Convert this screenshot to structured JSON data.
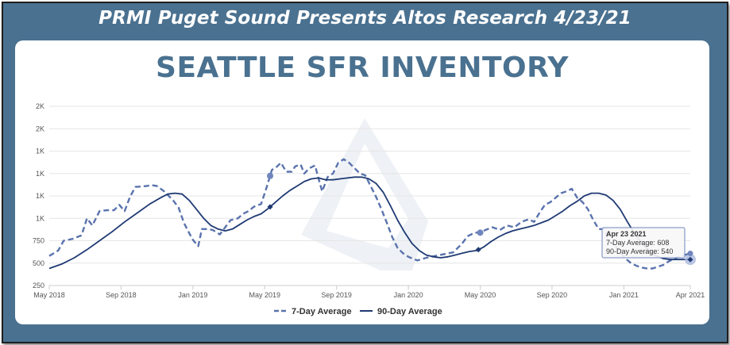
{
  "header": {
    "banner": "PRMI Puget Sound Presents Altos Research 4/23/21",
    "title": "SEATTLE SFR INVENTORY"
  },
  "colors": {
    "frame": "#4a7190",
    "series_7day": "#5a73ad",
    "series_90day": "#1f3a73",
    "grid": "#e6e6e6"
  },
  "chart_data": {
    "type": "line",
    "title": "SEATTLE SFR INVENTORY",
    "xlabel": "",
    "ylabel": "",
    "ylim": [
      250,
      2250
    ],
    "y_ticks": [
      {
        "value": 2250,
        "label": "2K"
      },
      {
        "value": 2000,
        "label": "2K"
      },
      {
        "value": 1750,
        "label": "1K"
      },
      {
        "value": 1500,
        "label": "1K"
      },
      {
        "value": 1250,
        "label": "1K"
      },
      {
        "value": 1000,
        "label": "1K"
      },
      {
        "value": 750,
        "label": "750"
      },
      {
        "value": 500,
        "label": "500"
      },
      {
        "value": 250,
        "label": "250"
      }
    ],
    "x_ticks": [
      {
        "value": 0,
        "label": "May 2018"
      },
      {
        "value": 4,
        "label": "Sep 2018"
      },
      {
        "value": 8,
        "label": "Jan 2019"
      },
      {
        "value": 12,
        "label": "May 2019"
      },
      {
        "value": 16,
        "label": "Sep 2019"
      },
      {
        "value": 20,
        "label": "Jan 2020"
      },
      {
        "value": 24,
        "label": "May 2020"
      },
      {
        "value": 28,
        "label": "Sep 2020"
      },
      {
        "value": 32,
        "label": "Jan 2021"
      },
      {
        "value": 35.7,
        "label": "Apr 2021"
      }
    ],
    "x_unit": "months since May 2018",
    "legend_position": "bottom",
    "series": [
      {
        "name": "7-Day Average",
        "style": "dashed",
        "points": [
          [
            0,
            580
          ],
          [
            0.5,
            640
          ],
          [
            0.8,
            750
          ],
          [
            1.3,
            770
          ],
          [
            1.8,
            810
          ],
          [
            2.1,
            1000
          ],
          [
            2.4,
            920
          ],
          [
            2.8,
            1080
          ],
          [
            3.2,
            1090
          ],
          [
            3.6,
            1090
          ],
          [
            3.9,
            1150
          ],
          [
            4.2,
            1080
          ],
          [
            4.5,
            1240
          ],
          [
            4.8,
            1350
          ],
          [
            5.4,
            1360
          ],
          [
            5.7,
            1370
          ],
          [
            6.0,
            1360
          ],
          [
            6.4,
            1300
          ],
          [
            6.9,
            1200
          ],
          [
            7.2,
            1120
          ],
          [
            7.5,
            950
          ],
          [
            7.7,
            870
          ],
          [
            8.0,
            760
          ],
          [
            8.3,
            690
          ],
          [
            8.5,
            880
          ],
          [
            8.8,
            880
          ],
          [
            9.1,
            870
          ],
          [
            9.5,
            820
          ],
          [
            9.8,
            900
          ],
          [
            10.1,
            980
          ],
          [
            10.5,
            1000
          ],
          [
            10.8,
            1050
          ],
          [
            11.1,
            1080
          ],
          [
            11.4,
            1130
          ],
          [
            11.8,
            1160
          ],
          [
            12.1,
            1340
          ],
          [
            12.4,
            1540
          ],
          [
            12.7,
            1580
          ],
          [
            12.9,
            1620
          ],
          [
            13.2,
            1520
          ],
          [
            13.5,
            1520
          ],
          [
            13.7,
            1580
          ],
          [
            14.0,
            1600
          ],
          [
            14.2,
            1500
          ],
          [
            14.5,
            1560
          ],
          [
            14.8,
            1590
          ],
          [
            15.0,
            1440
          ],
          [
            15.2,
            1300
          ],
          [
            15.5,
            1460
          ],
          [
            15.8,
            1500
          ],
          [
            16.1,
            1620
          ],
          [
            16.4,
            1660
          ],
          [
            16.7,
            1620
          ],
          [
            17.0,
            1560
          ],
          [
            17.3,
            1500
          ],
          [
            17.6,
            1480
          ],
          [
            17.9,
            1360
          ],
          [
            18.2,
            1240
          ],
          [
            18.5,
            1100
          ],
          [
            18.8,
            950
          ],
          [
            19.1,
            790
          ],
          [
            19.4,
            670
          ],
          [
            19.7,
            610
          ],
          [
            20.0,
            570
          ],
          [
            20.5,
            530
          ],
          [
            21.0,
            560
          ],
          [
            21.5,
            580
          ],
          [
            22.0,
            600
          ],
          [
            22.5,
            620
          ],
          [
            23.0,
            720
          ],
          [
            23.3,
            800
          ],
          [
            23.7,
            840
          ],
          [
            24.0,
            840
          ],
          [
            24.3,
            870
          ],
          [
            24.7,
            900
          ],
          [
            25.1,
            870
          ],
          [
            25.5,
            920
          ],
          [
            25.9,
            900
          ],
          [
            26.3,
            960
          ],
          [
            26.7,
            990
          ],
          [
            27.0,
            960
          ],
          [
            27.3,
            1060
          ],
          [
            27.6,
            1150
          ],
          [
            27.9,
            1180
          ],
          [
            28.2,
            1230
          ],
          [
            28.5,
            1280
          ],
          [
            28.8,
            1300
          ],
          [
            29.1,
            1330
          ],
          [
            29.4,
            1230
          ],
          [
            29.7,
            1180
          ],
          [
            30.0,
            1100
          ],
          [
            30.3,
            980
          ],
          [
            30.6,
            880
          ],
          [
            30.9,
            880
          ],
          [
            31.2,
            740
          ],
          [
            31.5,
            700
          ],
          [
            31.8,
            620
          ],
          [
            32.1,
            550
          ],
          [
            32.4,
            500
          ],
          [
            32.7,
            470
          ],
          [
            33.0,
            450
          ],
          [
            33.3,
            440
          ],
          [
            33.6,
            440
          ],
          [
            33.9,
            460
          ],
          [
            34.2,
            480
          ],
          [
            34.5,
            520
          ],
          [
            34.8,
            550
          ],
          [
            35.2,
            580
          ],
          [
            35.7,
            608
          ]
        ]
      },
      {
        "name": "90-Day Average",
        "style": "solid",
        "points": [
          [
            0,
            440
          ],
          [
            0.7,
            490
          ],
          [
            1.4,
            560
          ],
          [
            2.1,
            650
          ],
          [
            2.8,
            750
          ],
          [
            3.5,
            850
          ],
          [
            4.2,
            960
          ],
          [
            4.9,
            1060
          ],
          [
            5.6,
            1160
          ],
          [
            6.2,
            1230
          ],
          [
            6.6,
            1270
          ],
          [
            7.0,
            1280
          ],
          [
            7.4,
            1270
          ],
          [
            7.8,
            1200
          ],
          [
            8.2,
            1100
          ],
          [
            8.6,
            1000
          ],
          [
            9.0,
            920
          ],
          [
            9.4,
            880
          ],
          [
            9.8,
            860
          ],
          [
            10.2,
            880
          ],
          [
            10.6,
            930
          ],
          [
            11.0,
            980
          ],
          [
            11.4,
            1020
          ],
          [
            11.8,
            1050
          ],
          [
            12.2,
            1110
          ],
          [
            12.6,
            1180
          ],
          [
            13.0,
            1250
          ],
          [
            13.4,
            1310
          ],
          [
            13.8,
            1360
          ],
          [
            14.2,
            1410
          ],
          [
            14.6,
            1440
          ],
          [
            15.0,
            1450
          ],
          [
            15.4,
            1430
          ],
          [
            15.8,
            1430
          ],
          [
            16.2,
            1440
          ],
          [
            16.6,
            1450
          ],
          [
            17.0,
            1460
          ],
          [
            17.4,
            1460
          ],
          [
            17.8,
            1440
          ],
          [
            18.2,
            1390
          ],
          [
            18.6,
            1290
          ],
          [
            19.0,
            1140
          ],
          [
            19.4,
            980
          ],
          [
            19.8,
            840
          ],
          [
            20.2,
            720
          ],
          [
            20.6,
            640
          ],
          [
            21.0,
            590
          ],
          [
            21.4,
            570
          ],
          [
            21.8,
            560
          ],
          [
            22.2,
            570
          ],
          [
            22.6,
            590
          ],
          [
            23.0,
            610
          ],
          [
            23.4,
            630
          ],
          [
            23.8,
            640
          ],
          [
            24.2,
            680
          ],
          [
            24.6,
            740
          ],
          [
            25.0,
            790
          ],
          [
            25.4,
            830
          ],
          [
            25.8,
            860
          ],
          [
            26.2,
            880
          ],
          [
            26.6,
            900
          ],
          [
            27.0,
            920
          ],
          [
            27.4,
            950
          ],
          [
            27.8,
            980
          ],
          [
            28.2,
            1030
          ],
          [
            28.6,
            1080
          ],
          [
            29.0,
            1140
          ],
          [
            29.4,
            1190
          ],
          [
            29.8,
            1250
          ],
          [
            30.2,
            1280
          ],
          [
            30.6,
            1280
          ],
          [
            31.0,
            1260
          ],
          [
            31.4,
            1200
          ],
          [
            31.8,
            1100
          ],
          [
            32.2,
            960
          ],
          [
            32.6,
            830
          ],
          [
            33.0,
            720
          ],
          [
            33.4,
            640
          ],
          [
            33.8,
            580
          ],
          [
            34.2,
            550
          ],
          [
            34.6,
            540
          ],
          [
            35.0,
            540
          ],
          [
            35.7,
            540
          ]
        ]
      }
    ],
    "markers": {
      "7-Day Average": [
        12.3,
        24.0
      ],
      "90-Day Average": [
        12.3,
        23.9
      ]
    },
    "tooltip": {
      "date": "Apr 23 2021",
      "line1": "7-Day Average: 608",
      "line2": "90-Day Average: 540"
    }
  }
}
